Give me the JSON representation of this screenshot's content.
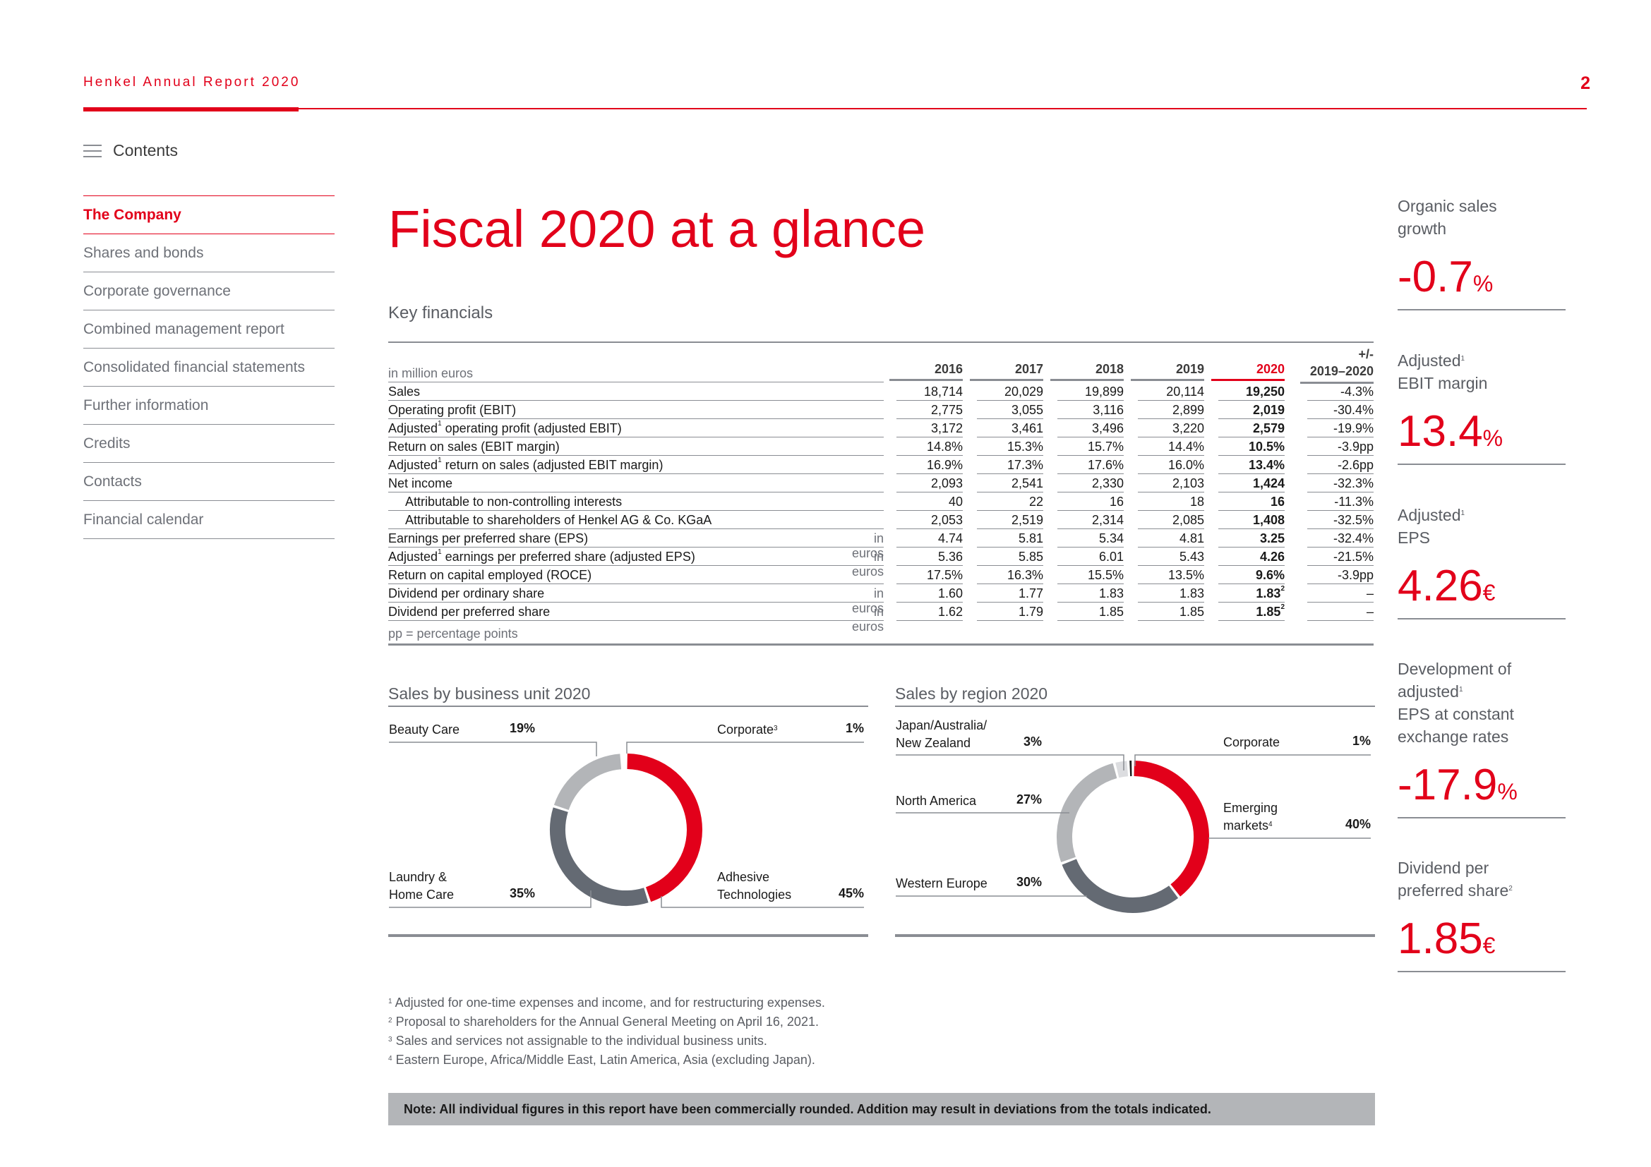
{
  "header": {
    "title": "Henkel Annual Report 2020",
    "page_number": "2"
  },
  "contents_label": "Contents",
  "nav": {
    "items": [
      {
        "label": "The Company",
        "active": true
      },
      {
        "label": "Shares and bonds"
      },
      {
        "label": "Corporate governance"
      },
      {
        "label": "Combined management report"
      },
      {
        "label": "Consolidated financial statements"
      },
      {
        "label": "Further information"
      },
      {
        "label": "Credits"
      },
      {
        "label": "Contacts"
      },
      {
        "label": "Financial calendar"
      }
    ]
  },
  "page_title": "Fiscal 2020 at a glance",
  "key_financials": {
    "title": "Key financials",
    "unit_label": "in million euros",
    "years": [
      "2016",
      "2017",
      "2018",
      "2019",
      "2020"
    ],
    "change_header": [
      "+/-",
      "2019–2020"
    ],
    "rows": [
      {
        "label": "Sales",
        "unit": "",
        "values": [
          "18,714",
          "20,029",
          "19,899",
          "20,114",
          "19,250"
        ],
        "change": "-4.3%"
      },
      {
        "label": "Operating profit (EBIT)",
        "unit": "",
        "values": [
          "2,775",
          "3,055",
          "3,116",
          "2,899",
          "2,019"
        ],
        "change": "-30.4%"
      },
      {
        "label_pre": "Adjusted",
        "label_sup": "1",
        "label_post": " operating profit (adjusted EBIT)",
        "unit": "",
        "values": [
          "3,172",
          "3,461",
          "3,496",
          "3,220",
          "2,579"
        ],
        "change": "-19.9%"
      },
      {
        "label": "Return on sales (EBIT margin)",
        "unit": "",
        "values": [
          "14.8%",
          "15.3%",
          "15.7%",
          "14.4%",
          "10.5%"
        ],
        "change": "-3.9pp"
      },
      {
        "label_pre": "Adjusted",
        "label_sup": "1",
        "label_post": " return on sales (adjusted EBIT margin)",
        "unit": "",
        "values": [
          "16.9%",
          "17.3%",
          "17.6%",
          "16.0%",
          "13.4%"
        ],
        "change": "-2.6pp"
      },
      {
        "label": "Net income",
        "unit": "",
        "values": [
          "2,093",
          "2,541",
          "2,330",
          "2,103",
          "1,424"
        ],
        "change": "-32.3%"
      },
      {
        "label": "Attributable to non-controlling interests",
        "indent": true,
        "unit": "",
        "values": [
          "40",
          "22",
          "16",
          "18",
          "16"
        ],
        "change": "-11.3%"
      },
      {
        "label": "Attributable to shareholders of Henkel AG & Co. KGaA",
        "indent": true,
        "unit": "",
        "values": [
          "2,053",
          "2,519",
          "2,314",
          "2,085",
          "1,408"
        ],
        "change": "-32.5%"
      },
      {
        "label": "Earnings per preferred share (EPS)",
        "unit": "in euros",
        "values": [
          "4.74",
          "5.81",
          "5.34",
          "4.81",
          "3.25"
        ],
        "change": "-32.4%"
      },
      {
        "label_pre": "Adjusted",
        "label_sup": "1",
        "label_post": " earnings per preferred share (adjusted EPS)",
        "unit": "in euros",
        "values": [
          "5.36",
          "5.85",
          "6.01",
          "5.43",
          "4.26"
        ],
        "change": "-21.5%"
      },
      {
        "label": "Return on capital employed (ROCE)",
        "unit": "",
        "values": [
          "17.5%",
          "16.3%",
          "15.5%",
          "13.5%",
          "9.6%"
        ],
        "change": "-3.9pp"
      },
      {
        "label": "Dividend per ordinary share",
        "unit": "in euros",
        "values": [
          "1.60",
          "1.77",
          "1.83",
          "1.83",
          "1.83"
        ],
        "last_sup": "2",
        "change": "–"
      },
      {
        "label": "Dividend per preferred share",
        "unit": "in euros",
        "values": [
          "1.62",
          "1.79",
          "1.85",
          "1.85",
          "1.85"
        ],
        "last_sup": "2",
        "change": "–"
      }
    ],
    "note": "pp = percentage points"
  },
  "sales_by_business_unit": {
    "title": "Sales by business unit 2020",
    "segments": [
      {
        "name": "Adhesive Technologies",
        "label_lines": [
          "Adhesive",
          "Technologies"
        ],
        "pct": "45%",
        "value": 45,
        "color": "#e2001a"
      },
      {
        "name": "Laundry & Home Care",
        "label_lines": [
          "Laundry &",
          "Home Care"
        ],
        "pct": "35%",
        "value": 35,
        "color": "#646a73"
      },
      {
        "name": "Beauty Care",
        "label_lines": [
          "Beauty Care"
        ],
        "pct": "19%",
        "value": 19,
        "color": "#b3b5b8"
      },
      {
        "name": "Corporate",
        "label_lines": [
          "Corporate"
        ],
        "sup": "3",
        "pct": "1%",
        "value": 1,
        "color": "#ffffff"
      }
    ]
  },
  "sales_by_region": {
    "title": "Sales by region 2020",
    "segments": [
      {
        "name": "Emerging markets",
        "label_lines": [
          "Emerging",
          "markets"
        ],
        "sup": "4",
        "pct": "40%",
        "value": 40,
        "color": "#e2001a"
      },
      {
        "name": "Western Europe",
        "label_lines": [
          "Western Europe"
        ],
        "pct": "30%",
        "value": 30,
        "color": "#646a73"
      },
      {
        "name": "North America",
        "label_lines": [
          "North America"
        ],
        "pct": "27%",
        "value": 27,
        "color": "#b3b5b8"
      },
      {
        "name": "Japan/Australia/New Zealand",
        "label_lines": [
          "Japan/Australia/",
          "New Zealand"
        ],
        "pct": "3%",
        "value": 3,
        "color": "#dcdde0"
      },
      {
        "name": "Corporate",
        "label_lines": [
          "Corporate"
        ],
        "pct": "1%",
        "value": 1,
        "color": "#1a1a1a"
      }
    ]
  },
  "kpis": [
    {
      "label_lines": [
        "Organic sales",
        "growth"
      ],
      "value": "-0.7",
      "unit": "%"
    },
    {
      "label_lines": [
        "Adjusted",
        "EBIT margin"
      ],
      "label_sup": "1",
      "value": "13.4",
      "unit": "%"
    },
    {
      "label_lines": [
        "Adjusted",
        "EPS"
      ],
      "label_sup": "1",
      "value": "4.26",
      "unit": "€"
    },
    {
      "label_lines": [
        "Development of",
        "adjusted",
        "EPS at constant",
        "exchange rates"
      ],
      "label_sup": "1",
      "value": "-17.9",
      "unit": "%"
    },
    {
      "label_lines": [
        "Dividend per",
        "preferred share"
      ],
      "label_sup": "2",
      "value": "1.85",
      "unit": "€"
    }
  ],
  "footnotes": [
    {
      "num": "1",
      "text": "Adjusted for one-time expenses and income, and for restructuring expenses."
    },
    {
      "num": "2",
      "text": "Proposal to shareholders for the Annual General Meeting on April 16, 2021."
    },
    {
      "num": "3",
      "text": "Sales and services not assignable to the individual business units."
    },
    {
      "num": "4",
      "text": "Eastern Europe, Africa/Middle East, Latin America, Asia (excluding Japan)."
    }
  ],
  "note_box": "Note: All individual figures in this report have been commercially rounded. Addition may result in deviations from the totals indicated.",
  "colors": {
    "brand_red": "#e2001a",
    "dark_grey": "#646a73",
    "light_grey": "#b3b5b8",
    "rule_grey": "#8a8d93"
  }
}
